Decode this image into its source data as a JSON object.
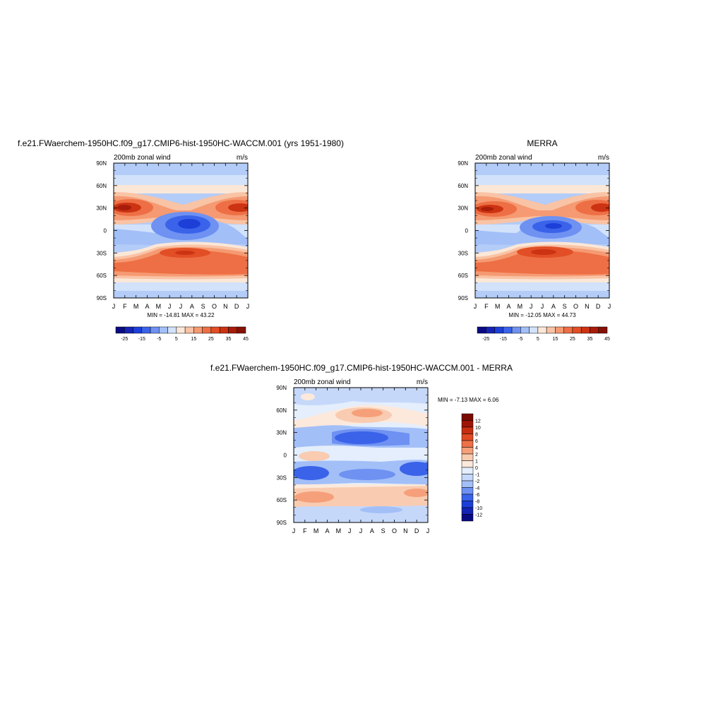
{
  "chart_data": [
    {
      "type": "heatmap",
      "id": "model",
      "title": "f.e21.FWaerchem-1950HC.f09_g17.CMIP6-hist-1950HC-WACCM.001 (yrs 1951-1980)",
      "left_label": "200mb zonal wind",
      "right_label": "m/s",
      "x_ticks": [
        "J",
        "F",
        "M",
        "A",
        "M",
        "J",
        "J",
        "A",
        "S",
        "O",
        "N",
        "D",
        "J"
      ],
      "y_ticks": [
        "90N",
        "60N",
        "30N",
        "0",
        "30S",
        "60S",
        "90S"
      ],
      "stats": "MIN = -14.81 MAX =  43.22",
      "min": -14.81,
      "max": 43.22,
      "colorbar": {
        "labels": [
          "-25",
          "-15",
          "-5",
          "5",
          "15",
          "25",
          "35",
          "45"
        ],
        "levels": [
          -30,
          -25,
          -20,
          -15,
          -10,
          -5,
          0,
          5,
          10,
          15,
          20,
          25,
          30,
          35,
          40,
          45,
          50
        ],
        "colors": [
          "#0a0a82",
          "#1523b4",
          "#1d3fd8",
          "#3a63ea",
          "#6e91f2",
          "#a3bff8",
          "#d2e2fb",
          "#fbe7d7",
          "#f9c3a5",
          "#f59a72",
          "#ee6f45",
          "#e24e25",
          "#cc3312",
          "#a81c0a",
          "#851005"
        ]
      }
    },
    {
      "type": "heatmap",
      "id": "obs",
      "title": "MERRA",
      "left_label": "200mb zonal wind",
      "right_label": "m/s",
      "x_ticks": [
        "J",
        "F",
        "M",
        "A",
        "M",
        "J",
        "J",
        "A",
        "S",
        "O",
        "N",
        "D",
        "J"
      ],
      "y_ticks": [
        "90N",
        "60N",
        "30N",
        "0",
        "30S",
        "60S",
        "90S"
      ],
      "stats": "MIN = -12.05 MAX =  44.73",
      "min": -12.05,
      "max": 44.73,
      "colorbar": {
        "labels": [
          "-25",
          "-15",
          "-5",
          "5",
          "15",
          "25",
          "35",
          "45"
        ],
        "levels": [
          -30,
          -25,
          -20,
          -15,
          -10,
          -5,
          0,
          5,
          10,
          15,
          20,
          25,
          30,
          35,
          40,
          45,
          50
        ],
        "colors": [
          "#0a0a82",
          "#1523b4",
          "#1d3fd8",
          "#3a63ea",
          "#6e91f2",
          "#a3bff8",
          "#d2e2fb",
          "#fbe7d7",
          "#f9c3a5",
          "#f59a72",
          "#ee6f45",
          "#e24e25",
          "#cc3312",
          "#a81c0a",
          "#851005"
        ]
      }
    },
    {
      "type": "heatmap",
      "id": "diff",
      "title": "f.e21.FWaerchem-1950HC.f09_g17.CMIP6-hist-1950HC-WACCM.001 - MERRA",
      "left_label": "200mb zonal wind",
      "right_label": "m/s",
      "x_ticks": [
        "J",
        "F",
        "M",
        "A",
        "M",
        "J",
        "J",
        "A",
        "S",
        "O",
        "N",
        "D",
        "J"
      ],
      "y_ticks": [
        "90N",
        "60N",
        "30N",
        "0",
        "30S",
        "60S",
        "90S"
      ],
      "stats": "MIN =  -7.13 MAX =   6.06",
      "min": -7.13,
      "max": 6.06,
      "colorbar": {
        "labels": [
          "12",
          "10",
          "8",
          "6",
          "4",
          "2",
          "1",
          "0",
          "-1",
          "-2",
          "-4",
          "-6",
          "-8",
          "-10",
          "-12"
        ],
        "levels": [
          -14,
          -12,
          -10,
          -8,
          -6,
          -4,
          -2,
          -1,
          0,
          1,
          2,
          4,
          6,
          8,
          10,
          12,
          14
        ],
        "colors": [
          "#0a0a82",
          "#1523b4",
          "#1d3fd8",
          "#3a63ea",
          "#6e91f2",
          "#a3bff8",
          "#c6d8fa",
          "#e4eefc",
          "#fce9dc",
          "#f9cbb0",
          "#f5a07a",
          "#ee7148",
          "#e04a22",
          "#c72e10",
          "#9e1407",
          "#7a0a02"
        ]
      }
    }
  ]
}
